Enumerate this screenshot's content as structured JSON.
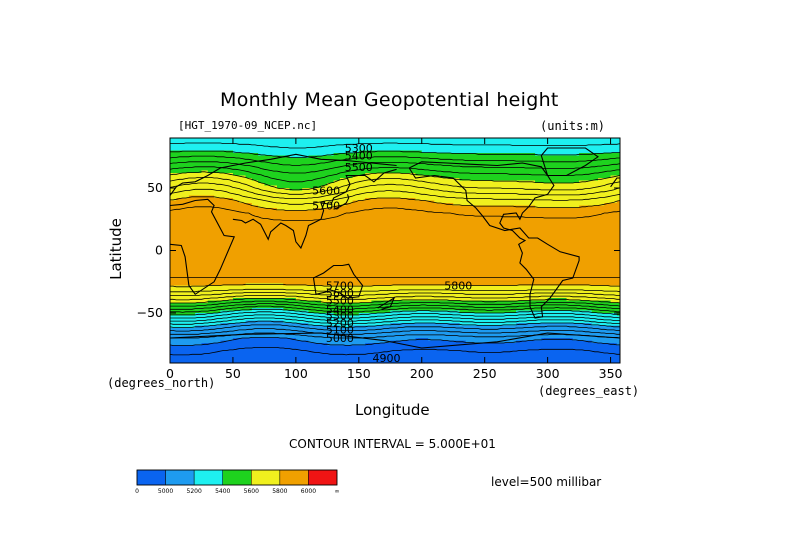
{
  "chart_data": {
    "type": "heatmap",
    "title": "Monthly Mean Geopotential height",
    "file_label": "[HGT_1970-09_NCEP.nc]",
    "units_label": "(units:m)",
    "xlabel": "Longitude",
    "ylabel": "Latitude",
    "x_unit_label": "(degrees_east)",
    "y_unit_label": "(degrees_north)",
    "xlim": [
      0,
      357.5
    ],
    "ylim": [
      -90,
      90
    ],
    "xticks": [
      "0",
      "50",
      "100",
      "150",
      "200",
      "250",
      "300",
      "350"
    ],
    "yticks": [
      "50",
      "0",
      "−50"
    ],
    "contour_interval_text": "CONTOUR INTERVAL = 5.000E+01",
    "level_text": "level=500 millibar",
    "color_levels": [
      {
        "min": null,
        "max": 5000,
        "color": "#0a64f0"
      },
      {
        "min": 5000,
        "max": 5200,
        "color": "#1e9bf0"
      },
      {
        "min": 5200,
        "max": 5400,
        "color": "#1ef0f0"
      },
      {
        "min": 5400,
        "max": 5600,
        "color": "#1ed21e"
      },
      {
        "min": 5600,
        "max": 5800,
        "color": "#f0f01e"
      },
      {
        "min": 5800,
        "max": 6000,
        "color": "#f0a000"
      },
      {
        "min": 6000,
        "max": null,
        "color": "#f01414"
      }
    ],
    "colorbar_labels": [
      "0",
      "5000",
      "5200",
      "5400",
      "5600",
      "5800",
      "6000",
      "∞"
    ],
    "zonal_profile": {
      "lat": [
        90,
        80,
        70,
        60,
        50,
        40,
        30,
        20,
        10,
        0,
        -10,
        -20,
        -30,
        -40,
        -50,
        -60,
        -70,
        -80,
        -90
      ],
      "height": [
        5320,
        5380,
        5480,
        5580,
        5670,
        5780,
        5850,
        5870,
        5880,
        5880,
        5880,
        5860,
        5780,
        5600,
        5380,
        5180,
        5020,
        4950,
        4920
      ]
    },
    "contour_labels": [
      {
        "text": "5300",
        "lon": 150,
        "lat": 82
      },
      {
        "text": "5400",
        "lon": 150,
        "lat": 76
      },
      {
        "text": "5500",
        "lon": 150,
        "lat": 67
      },
      {
        "text": "5600",
        "lon": 124,
        "lat": 48
      },
      {
        "text": "5700",
        "lon": 124,
        "lat": 36
      },
      {
        "text": "5800",
        "lon": 229,
        "lat": -28
      },
      {
        "text": "5700",
        "lon": 135,
        "lat": -28
      },
      {
        "text": "5600",
        "lon": 135,
        "lat": -34
      },
      {
        "text": "5500",
        "lon": 135,
        "lat": -40
      },
      {
        "text": "5400",
        "lon": 135,
        "lat": -47
      },
      {
        "text": "5300",
        "lon": 135,
        "lat": -52
      },
      {
        "text": "5200",
        "lon": 135,
        "lat": -58
      },
      {
        "text": "5100",
        "lon": 135,
        "lat": -63
      },
      {
        "text": "5000",
        "lon": 135,
        "lat": -70
      },
      {
        "text": "4900",
        "lon": 172,
        "lat": -86
      }
    ]
  }
}
